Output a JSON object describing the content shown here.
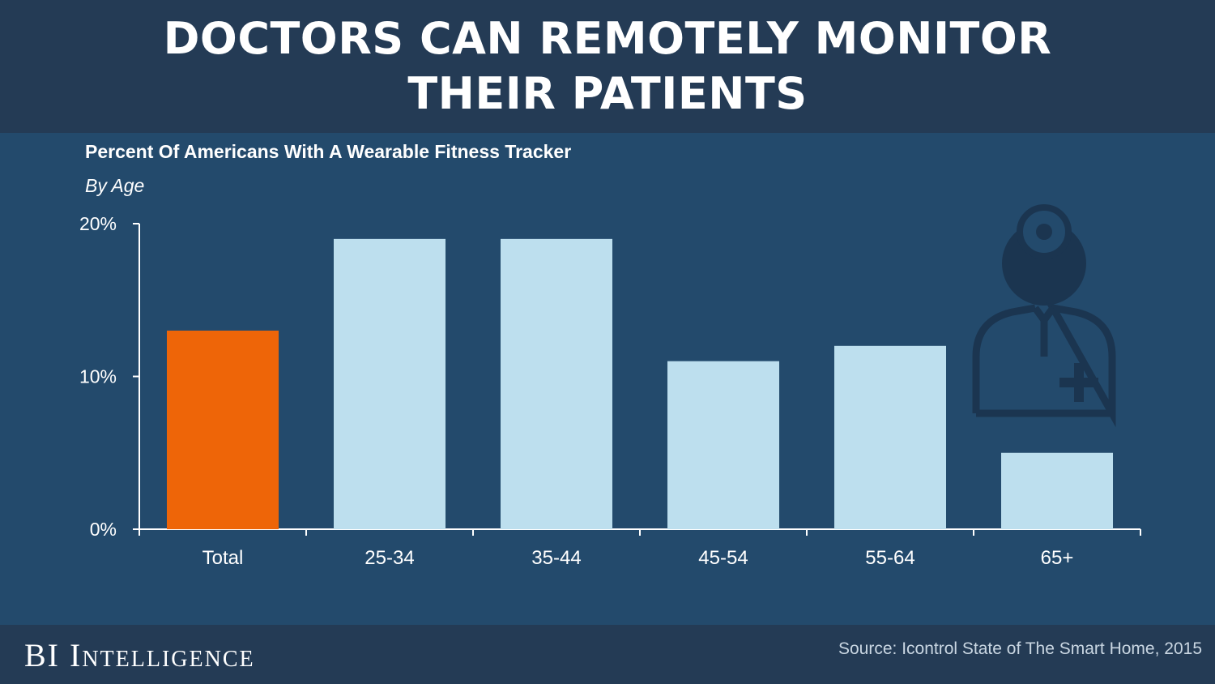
{
  "header": {
    "title": "DOCTORS CAN REMOTELY MONITOR THEIR PATIENTS"
  },
  "footer": {
    "brand": "BI Intelligence",
    "source": "Source: Icontrol State of The Smart Home, 2015"
  },
  "icons": {
    "decoration": "doctor-icon"
  },
  "colors": {
    "background": "#234a6c",
    "header": "#243b55",
    "highlight_bar": "#ee6508",
    "bar": "#bddfee",
    "icon": "#1b3550"
  },
  "chart_data": {
    "type": "bar",
    "title": "Percent Of Americans With A Wearable Fitness Tracker",
    "subtitle": "By Age",
    "categories": [
      "Total",
      "25-34",
      "35-44",
      "45-54",
      "55-64",
      "65+"
    ],
    "values": [
      13,
      19,
      19,
      11,
      12,
      5
    ],
    "highlight_category": "Total",
    "ylim": [
      0,
      20
    ],
    "yticks": [
      0,
      10,
      20
    ],
    "ytick_labels": [
      "0%",
      "10%",
      "20%"
    ],
    "xlabel": "",
    "ylabel": "",
    "grid": false
  }
}
